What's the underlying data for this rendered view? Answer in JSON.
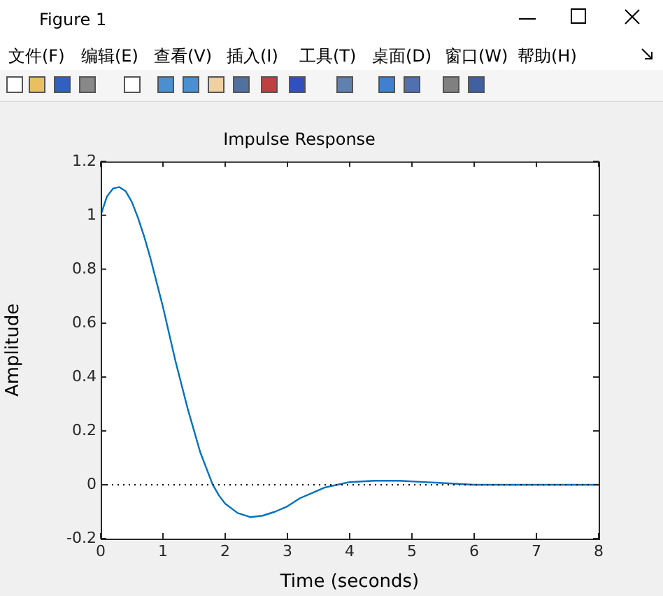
{
  "chart_data": {
    "type": "line",
    "title": "Impulse Response",
    "xlabel": "Time (seconds)",
    "ylabel": "Amplitude",
    "annotations": [
      "Figure 1",
      "文件(F)",
      "编辑(E)",
      "查看(V)",
      "插入(I)",
      "工具(T)",
      "桌面(D)",
      "窗口(W)",
      "帮助(H)"
    ],
    "x": [
      0,
      0.1,
      0.2,
      0.3,
      0.4,
      0.5,
      0.6,
      0.7,
      0.8,
      0.9,
      1.0,
      1.1,
      1.2,
      1.3,
      1.4,
      1.5,
      1.6,
      1.7,
      1.8,
      1.9,
      2.0,
      2.2,
      2.4,
      2.6,
      2.8,
      3.0,
      3.2,
      3.4,
      3.6,
      3.8,
      4.0,
      4.4,
      4.8,
      5.2,
      5.6,
      6.0,
      7.0,
      8.0
    ],
    "series": [
      {
        "color": "#0072bd",
        "values": [
          1.0,
          1.07,
          1.1,
          1.105,
          1.09,
          1.05,
          0.99,
          0.92,
          0.84,
          0.75,
          0.66,
          0.56,
          0.46,
          0.37,
          0.28,
          0.2,
          0.12,
          0.06,
          0.0,
          -0.04,
          -0.07,
          -0.105,
          -0.12,
          -0.115,
          -0.1,
          -0.08,
          -0.05,
          -0.03,
          -0.01,
          0.0,
          0.01,
          0.015,
          0.015,
          0.01,
          0.005,
          0.0,
          0.0,
          0.0
        ]
      }
    ],
    "xlim": [
      0,
      8
    ],
    "xticks": [
      0,
      1,
      2,
      3,
      4,
      5,
      6,
      7,
      8
    ],
    "ylim": [
      -0.2,
      1.2
    ],
    "yticks": [
      -0.2,
      0,
      0.2,
      0.4,
      0.6,
      0.8,
      1,
      1.2
    ],
    "ref_lines": [
      {
        "axis": "y",
        "value": 0,
        "color": "#000000",
        "line_style": "dotted"
      }
    ],
    "grid": false,
    "legend": false,
    "marker": "none",
    "line_style": "solid"
  }
}
